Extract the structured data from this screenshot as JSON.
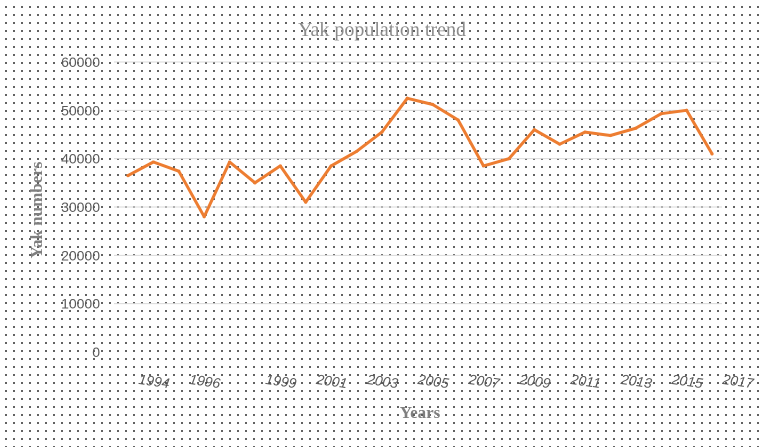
{
  "chart_data": {
    "type": "line",
    "title": "Yak population trend",
    "xlabel": "Years",
    "ylabel": "Yak numbers",
    "ylim": [
      0,
      60000
    ],
    "yticks": [
      "0",
      "10000",
      "20000",
      "30000",
      "40000",
      "50000",
      "60000"
    ],
    "xticks": [
      "1994",
      "1996",
      "1999",
      "2001",
      "2003",
      "2005",
      "2007",
      "2009",
      "2011",
      "2013",
      "2015",
      "2017"
    ],
    "grid": true,
    "legend": "none",
    "colors": {
      "line": "#ed7d31",
      "grid": "#d9d9d9"
    },
    "series": [
      {
        "name": "",
        "points": [
          {
            "x": "1993",
            "y": 36500
          },
          {
            "x": "1994",
            "y": 39300
          },
          {
            "x": "1995",
            "y": 37400
          },
          {
            "x": "1996",
            "y": 28000
          },
          {
            "x": "1997",
            "y": 39300
          },
          {
            "x": "1998",
            "y": 35000
          },
          {
            "x": "1999",
            "y": 38500
          },
          {
            "x": "2000",
            "y": 31000
          },
          {
            "x": "2001",
            "y": 38500
          },
          {
            "x": "2002",
            "y": 41500
          },
          {
            "x": "2003",
            "y": 45500
          },
          {
            "x": "2004",
            "y": 52500
          },
          {
            "x": "2005",
            "y": 51200
          },
          {
            "x": "2006",
            "y": 48000
          },
          {
            "x": "2007",
            "y": 38500
          },
          {
            "x": "2008",
            "y": 40000
          },
          {
            "x": "2009",
            "y": 46000
          },
          {
            "x": "2010",
            "y": 43000
          },
          {
            "x": "2011",
            "y": 45500
          },
          {
            "x": "2012",
            "y": 44800
          },
          {
            "x": "2013",
            "y": 46300
          },
          {
            "x": "2014",
            "y": 49300
          },
          {
            "x": "2015",
            "y": 50000
          },
          {
            "x": "2016",
            "y": 41000
          }
        ]
      }
    ]
  }
}
